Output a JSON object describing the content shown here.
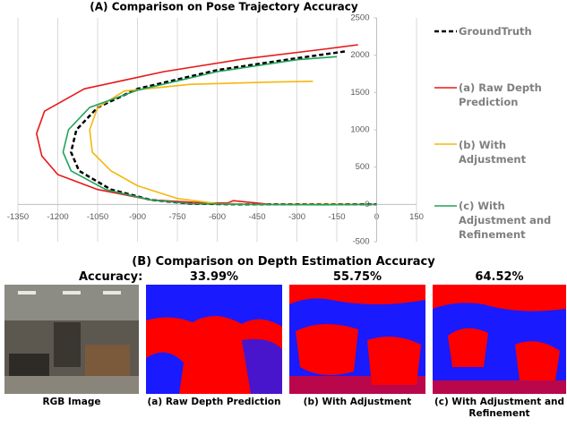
{
  "chart_data": {
    "type": "line",
    "title": "(A) Comparison on Pose Trajectory Accuracy",
    "xlim": [
      -1350,
      150
    ],
    "ylim": [
      -500,
      2500
    ],
    "xticks": [
      -1350,
      -1200,
      -1050,
      -900,
      -750,
      -600,
      -450,
      -300,
      -150,
      0,
      150
    ],
    "yticks": [
      -500,
      0,
      500,
      1000,
      1500,
      2000,
      2500
    ],
    "grid": true,
    "legend": "right",
    "series": [
      {
        "name": "GroundTruth",
        "color": "#000000",
        "dash": true,
        "x": [
          -120,
          -300,
          -600,
          -900,
          -1050,
          -1130,
          -1150,
          -1120,
          -1000,
          -850,
          -700,
          -500,
          -200,
          0
        ],
        "values": [
          2050,
          1960,
          1800,
          1550,
          1300,
          1000,
          700,
          450,
          200,
          60,
          10,
          0,
          0,
          0
        ]
      },
      {
        "name": "(a) Raw Depth Prediction",
        "color": "#e8191b",
        "dash": false,
        "x": [
          -70,
          -200,
          -500,
          -800,
          -1100,
          -1250,
          -1280,
          -1260,
          -1200,
          -1050,
          -850,
          -650,
          -560,
          -540,
          -400,
          -200,
          0
        ],
        "values": [
          2140,
          2080,
          1950,
          1780,
          1550,
          1250,
          950,
          650,
          400,
          200,
          60,
          20,
          20,
          50,
          0,
          0,
          0
        ]
      },
      {
        "name": "(b) With Adjustment",
        "color": "#f5b70e",
        "dash": false,
        "x": [
          -240,
          -400,
          -700,
          -950,
          -1050,
          -1080,
          -1070,
          -1000,
          -900,
          -750,
          -600,
          -450,
          -300,
          0
        ],
        "values": [
          1650,
          1640,
          1610,
          1520,
          1300,
          1000,
          700,
          450,
          250,
          80,
          10,
          0,
          0,
          0
        ]
      },
      {
        "name": "(c) With Adjustment and Refinement",
        "color": "#1fa35a",
        "dash": false,
        "x": [
          -150,
          -300,
          -600,
          -900,
          -1080,
          -1160,
          -1180,
          -1150,
          -1020,
          -850,
          -700,
          -500,
          -200,
          0
        ],
        "values": [
          1980,
          1940,
          1780,
          1530,
          1300,
          1000,
          700,
          450,
          200,
          60,
          10,
          0,
          -5,
          0
        ]
      }
    ]
  },
  "panel_b": {
    "title": "(B) Comparison on Depth Estimation Accuracy",
    "accuracy_label": "Accuracy:",
    "accuracies": [
      "33.99%",
      "55.75%",
      "64.52%"
    ],
    "captions": [
      "RGB Image",
      "(a) Raw Depth Prediction",
      "(b) With Adjustment",
      "(c) With Adjustment and Refinement"
    ]
  }
}
